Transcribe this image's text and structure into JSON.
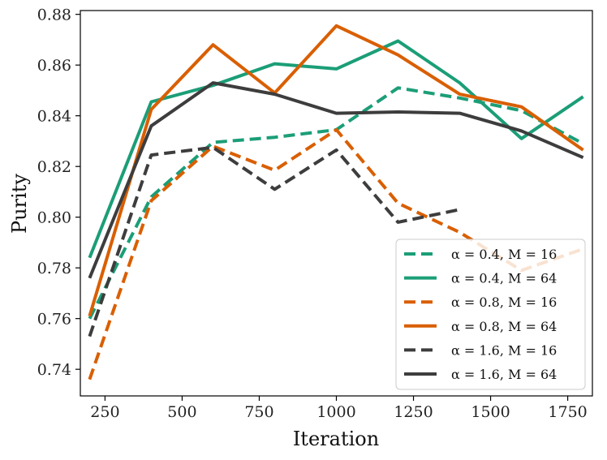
{
  "chart_data": {
    "type": "line",
    "title": "",
    "xlabel": "Iteration",
    "ylabel": "Purity",
    "xlim": [
      170,
      1830
    ],
    "ylim": [
      0.7295,
      0.8815
    ],
    "xticks": [
      250,
      500,
      750,
      1000,
      1250,
      1500,
      1750
    ],
    "xtick_labels": [
      "250",
      "500",
      "750",
      "1000",
      "1250",
      "1500",
      "1750"
    ],
    "yticks": [
      0.74,
      0.76,
      0.78,
      0.8,
      0.82,
      0.84,
      0.86,
      0.88
    ],
    "ytick_labels": [
      "0.74",
      "0.76",
      "0.78",
      "0.80",
      "0.82",
      "0.84",
      "0.86",
      "0.88"
    ],
    "grid": false,
    "legend_position": "bottom-right",
    "x": [
      200,
      400,
      600,
      800,
      1000,
      1200,
      1400,
      1600,
      1800
    ],
    "series": [
      {
        "name": "α = 0.4, M = 16",
        "color": "#1b9e77",
        "dash": true,
        "values": [
          0.76,
          0.808,
          0.8295,
          0.8315,
          0.8345,
          0.851,
          0.847,
          0.842,
          0.829
        ]
      },
      {
        "name": "α = 0.4, M = 64",
        "color": "#1b9e77",
        "dash": false,
        "values": [
          0.784,
          0.8455,
          0.852,
          0.8605,
          0.8585,
          0.8695,
          0.853,
          0.831,
          0.8475
        ]
      },
      {
        "name": "α = 0.8, M = 16",
        "color": "#d95f02",
        "dash": true,
        "values": [
          0.736,
          0.8065,
          0.828,
          0.8185,
          0.8345,
          0.8055,
          0.794,
          0.779,
          0.7875
        ]
      },
      {
        "name": "α = 0.8, M = 64",
        "color": "#d95f02",
        "dash": false,
        "values": [
          0.761,
          0.8425,
          0.868,
          0.849,
          0.8755,
          0.864,
          0.8485,
          0.8435,
          0.8265
        ]
      },
      {
        "name": "α = 1.6, M = 16",
        "color": "#3d3d3d",
        "dash": true,
        "values": [
          0.753,
          0.8245,
          0.8275,
          0.811,
          0.8265,
          0.798,
          0.803,
          null,
          null
        ]
      },
      {
        "name": "α = 1.6, M = 64",
        "color": "#3d3d3d",
        "dash": false,
        "values": [
          0.776,
          0.836,
          0.853,
          0.8485,
          0.841,
          0.8415,
          0.841,
          0.834,
          0.8235
        ]
      }
    ]
  }
}
